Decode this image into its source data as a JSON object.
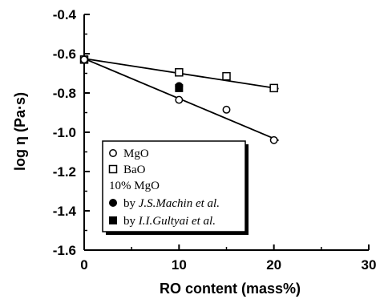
{
  "chart_data": {
    "type": "scatter",
    "xlabel": "RO content (mass%)",
    "ylabel": "log η (Pa·s)",
    "xlim": [
      0,
      30
    ],
    "ylim": [
      -1.6,
      -0.4
    ],
    "x_ticks": [
      "0",
      "10",
      "20",
      "30"
    ],
    "y_ticks": [
      "-0.4",
      "-0.6",
      "-0.8",
      "-1.0",
      "-1.2",
      "-1.4",
      "-1.6"
    ],
    "grid": false,
    "legend_placement": "lower-left",
    "series": [
      {
        "name": "MgO",
        "marker": "open-circle",
        "x": [
          0,
          10,
          15,
          20
        ],
        "y": [
          -0.63,
          -0.835,
          -0.885,
          -1.04
        ]
      },
      {
        "name": "BaO",
        "marker": "open-square",
        "x": [
          0,
          10,
          15,
          20
        ],
        "y": [
          -0.63,
          -0.695,
          -0.715,
          -0.775
        ]
      },
      {
        "name": "by J.S.Machin et al.",
        "marker": "filled-circle",
        "x": [
          10
        ],
        "y": [
          -0.765
        ]
      },
      {
        "name": "by I.I.Gultyai et al.",
        "marker": "filled-square",
        "x": [
          10
        ],
        "y": [
          -0.775
        ]
      }
    ],
    "fit_lines": [
      {
        "series": "MgO",
        "x": [
          0,
          20.5
        ],
        "y": [
          -0.625,
          -1.042
        ]
      },
      {
        "series": "BaO",
        "x": [
          0,
          20.5
        ],
        "y": [
          -0.625,
          -0.778
        ]
      }
    ],
    "legend": {
      "items": [
        {
          "marker": "open-circle",
          "label": "MgO"
        },
        {
          "marker": "open-square",
          "label": "BaO"
        },
        {
          "marker": "none",
          "label": "10% MgO"
        },
        {
          "marker": "filled-circle",
          "label_prefix": "by ",
          "label_italic": "J.S.Machin et al."
        },
        {
          "marker": "filled-square",
          "label_prefix": "by ",
          "label_italic": "I.I.Gultyai et al."
        }
      ]
    }
  }
}
